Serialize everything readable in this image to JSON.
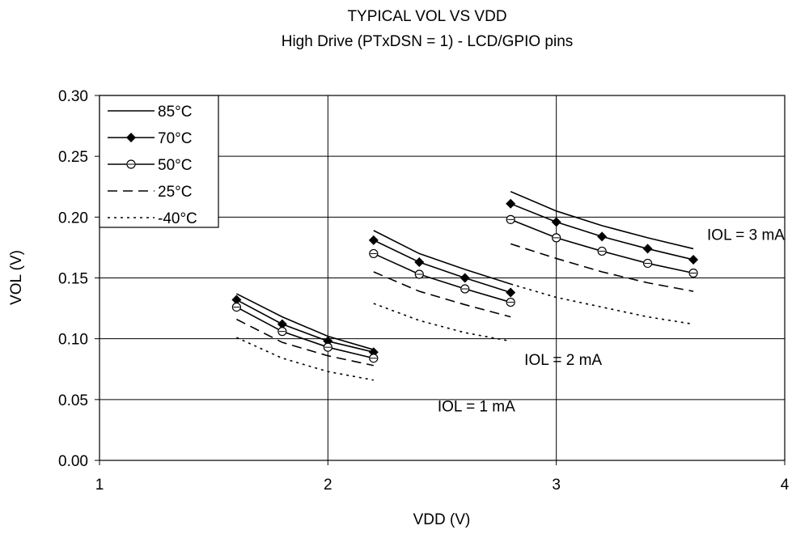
{
  "chart_data": {
    "type": "line",
    "title": "TYPICAL VOL VS VDD",
    "subtitle": "High Drive (PTxDSN = 1) - LCD/GPIO pins",
    "xlabel": "VDD (V)",
    "ylabel": "VOL (V)",
    "xlim": [
      1,
      4
    ],
    "ylim": [
      0,
      0.3
    ],
    "x_ticks": [
      "1",
      "2",
      "3",
      "4"
    ],
    "y_ticks": [
      "0.00",
      "0.05",
      "0.10",
      "0.15",
      "0.20",
      "0.25",
      "0.30"
    ],
    "grid": true,
    "legend_position": "top-left",
    "series": [
      {
        "name": "85°C",
        "style": "solid",
        "marker": "none",
        "segments": [
          {
            "x": [
              1.6,
              1.8,
              2.0,
              2.2
            ],
            "y": [
              0.137,
              0.118,
              0.102,
              0.091
            ]
          },
          {
            "x": [
              2.2,
              2.4,
              2.6,
              2.8
            ],
            "y": [
              0.189,
              0.17,
              0.157,
              0.145
            ]
          },
          {
            "x": [
              2.8,
              3.0,
              3.2,
              3.4,
              3.6
            ],
            "y": [
              0.221,
              0.205,
              0.193,
              0.183,
              0.174
            ]
          }
        ]
      },
      {
        "name": "70°C",
        "style": "solid",
        "marker": "diamond",
        "segments": [
          {
            "x": [
              1.6,
              1.8,
              2.0,
              2.2
            ],
            "y": [
              0.132,
              0.112,
              0.098,
              0.089
            ]
          },
          {
            "x": [
              2.2,
              2.4,
              2.6,
              2.8
            ],
            "y": [
              0.181,
              0.163,
              0.15,
              0.138
            ]
          },
          {
            "x": [
              2.8,
              3.0,
              3.2,
              3.4,
              3.6
            ],
            "y": [
              0.211,
              0.196,
              0.184,
              0.174,
              0.165
            ]
          }
        ]
      },
      {
        "name": "50°C",
        "style": "solid",
        "marker": "circle",
        "segments": [
          {
            "x": [
              1.6,
              1.8,
              2.0,
              2.2
            ],
            "y": [
              0.126,
              0.106,
              0.093,
              0.084
            ]
          },
          {
            "x": [
              2.2,
              2.4,
              2.6,
              2.8
            ],
            "y": [
              0.17,
              0.153,
              0.141,
              0.13
            ]
          },
          {
            "x": [
              2.8,
              3.0,
              3.2,
              3.4,
              3.6
            ],
            "y": [
              0.198,
              0.183,
              0.172,
              0.162,
              0.154
            ]
          }
        ]
      },
      {
        "name": "25°C",
        "style": "dashed",
        "marker": "none",
        "segments": [
          {
            "x": [
              1.6,
              1.8,
              2.0,
              2.2
            ],
            "y": [
              0.116,
              0.097,
              0.086,
              0.078
            ]
          },
          {
            "x": [
              2.2,
              2.4,
              2.6,
              2.8
            ],
            "y": [
              0.155,
              0.139,
              0.128,
              0.118
            ]
          },
          {
            "x": [
              2.8,
              3.0,
              3.2,
              3.4,
              3.6
            ],
            "y": [
              0.178,
              0.166,
              0.155,
              0.146,
              0.139
            ]
          }
        ]
      },
      {
        "name": "-40°C",
        "style": "dotted",
        "marker": "none",
        "segments": [
          {
            "x": [
              1.6,
              1.8,
              2.0,
              2.2
            ],
            "y": [
              0.101,
              0.084,
              0.073,
              0.066
            ]
          },
          {
            "x": [
              2.2,
              2.4,
              2.6,
              2.8
            ],
            "y": [
              0.129,
              0.115,
              0.105,
              0.098
            ]
          },
          {
            "x": [
              2.8,
              3.0,
              3.2,
              3.4,
              3.6
            ],
            "y": [
              0.145,
              0.134,
              0.126,
              0.118,
              0.112
            ]
          }
        ]
      }
    ],
    "annotations": [
      {
        "text": "IOL = 1 mA",
        "x": 2.65,
        "y": 0.045
      },
      {
        "text": "IOL = 2 mA",
        "x": 3.03,
        "y": 0.083
      },
      {
        "text": "IOL = 3 mA",
        "x": 3.83,
        "y": 0.186
      }
    ]
  }
}
